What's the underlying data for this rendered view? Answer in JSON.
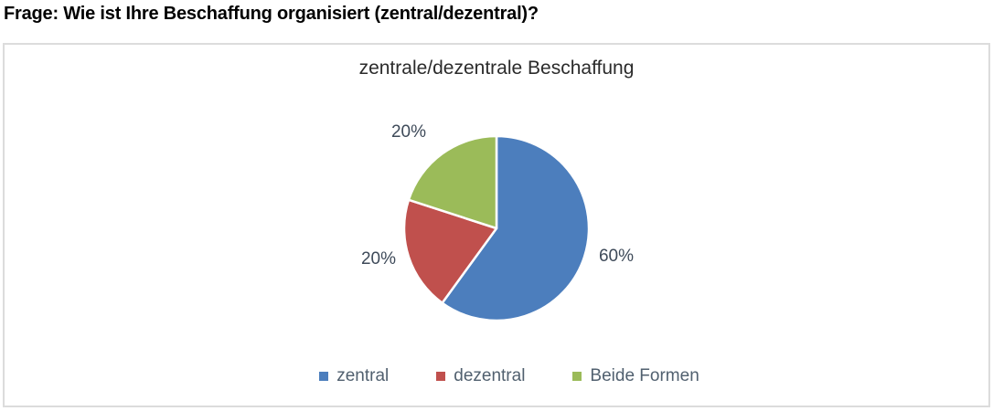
{
  "header": {
    "question": "Frage: Wie ist Ihre Beschaffung organisiert (zentral/dezentral)?"
  },
  "chart_data": {
    "type": "pie",
    "title": "zentrale/dezentrale Beschaffung",
    "start_angle_deg": 0,
    "direction": "clockwise",
    "legend_position": "bottom",
    "slices": [
      {
        "name": "zentral",
        "value": 60,
        "label": "60%",
        "color": "#4C7EBD"
      },
      {
        "name": "dezentral",
        "value": 20,
        "label": "20%",
        "color": "#C0504D"
      },
      {
        "name": "Beide Formen",
        "value": 20,
        "label": "20%",
        "color": "#9BBB59"
      }
    ],
    "colors": {
      "label_text": "#3e4a59",
      "legend_text": "#51606f",
      "frame_border": "#DCDCDC",
      "slice_separator": "#FFFFFF"
    }
  }
}
